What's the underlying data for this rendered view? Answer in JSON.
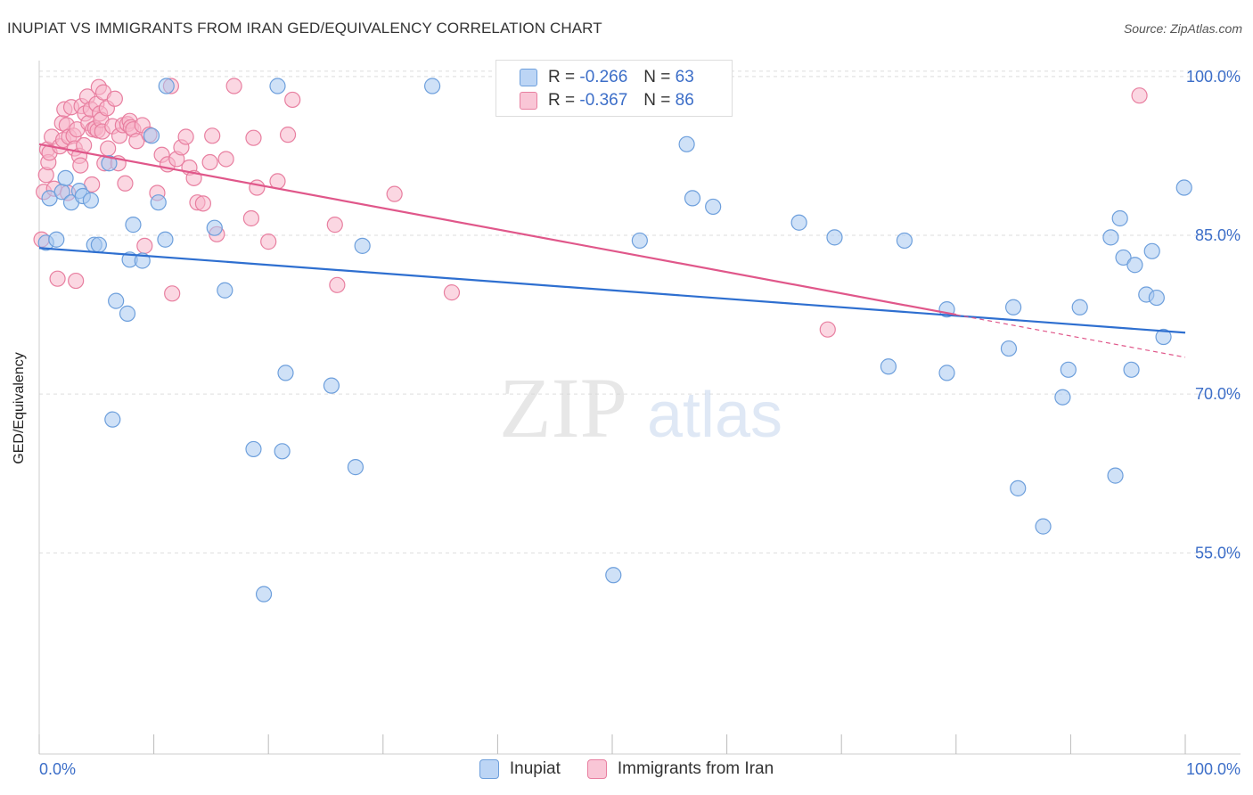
{
  "header": {
    "title": "INUPIAT VS IMMIGRANTS FROM IRAN GED/EQUIVALENCY CORRELATION CHART",
    "source": "Source: ZipAtlas.com"
  },
  "watermark": {
    "zip": "ZIP",
    "atlas": "atlas"
  },
  "colors": {
    "blue_fill": "#a8c8f0",
    "blue_stroke": "#6d9fdc",
    "blue_line": "#2e6fd0",
    "pink_fill": "#f7b6cb",
    "pink_stroke": "#e87fa0",
    "pink_line": "#e0578a",
    "tick_label": "#3c6ec8",
    "grid": "#dddddd"
  },
  "legend": {
    "rows": [
      {
        "r_label": "R =",
        "r_value": "-0.266",
        "n_label": "N =",
        "n_value": "63"
      },
      {
        "r_label": "R =",
        "r_value": "-0.367",
        "n_label": "N =",
        "n_value": "86"
      }
    ]
  },
  "chart_data": {
    "type": "scatter",
    "title": "INUPIAT VS IMMIGRANTS FROM IRAN GED/EQUIVALENCY CORRELATION CHART",
    "ylabel": "GED/Equivalency",
    "xlabel": "",
    "xlim": [
      0,
      100
    ],
    "ylim": [
      36.0,
      101.5
    ],
    "x_tick_labels": [
      "0.0%",
      "100.0%"
    ],
    "y_ticks": [
      55,
      70,
      85,
      100
    ],
    "y_tick_labels": [
      "55.0%",
      "70.0%",
      "85.0%",
      "100.0%"
    ],
    "grid": true,
    "legend_position": "top-center",
    "series": [
      {
        "name": "Inupiat",
        "color": "#a8c8f0",
        "points": [
          [
            0.6,
            84.3
          ],
          [
            0.9,
            88.5
          ],
          [
            1.5,
            84.6
          ],
          [
            2.0,
            89.1
          ],
          [
            2.3,
            90.4
          ],
          [
            2.8,
            88.1
          ],
          [
            3.5,
            89.2
          ],
          [
            3.8,
            88.7
          ],
          [
            4.5,
            88.3
          ],
          [
            4.8,
            84.1
          ],
          [
            5.2,
            84.1
          ],
          [
            6.1,
            91.8
          ],
          [
            6.4,
            67.6
          ],
          [
            6.7,
            78.8
          ],
          [
            7.7,
            77.6
          ],
          [
            7.9,
            82.7
          ],
          [
            8.2,
            86.0
          ],
          [
            9.0,
            82.6
          ],
          [
            9.8,
            94.4
          ],
          [
            10.4,
            88.1
          ],
          [
            11.0,
            84.6
          ],
          [
            11.1,
            99.1
          ],
          [
            15.3,
            85.7
          ],
          [
            16.2,
            79.8
          ],
          [
            18.7,
            64.8
          ],
          [
            19.6,
            51.1
          ],
          [
            20.8,
            99.1
          ],
          [
            21.2,
            64.6
          ],
          [
            21.5,
            72.0
          ],
          [
            25.5,
            70.8
          ],
          [
            27.6,
            63.1
          ],
          [
            28.2,
            84.0
          ],
          [
            34.3,
            99.1
          ],
          [
            47.0,
            99.1
          ],
          [
            50.1,
            52.9
          ],
          [
            52.4,
            84.5
          ],
          [
            56.5,
            93.6
          ],
          [
            57.0,
            88.5
          ],
          [
            58.8,
            87.7
          ],
          [
            66.3,
            86.2
          ],
          [
            69.4,
            84.8
          ],
          [
            74.1,
            72.6
          ],
          [
            75.5,
            84.5
          ],
          [
            79.2,
            72.0
          ],
          [
            79.2,
            78.0
          ],
          [
            84.6,
            74.3
          ],
          [
            85.0,
            78.2
          ],
          [
            85.4,
            61.1
          ],
          [
            87.6,
            57.5
          ],
          [
            89.3,
            69.7
          ],
          [
            89.8,
            72.3
          ],
          [
            90.8,
            78.2
          ],
          [
            93.5,
            84.8
          ],
          [
            93.9,
            62.3
          ],
          [
            94.3,
            86.6
          ],
          [
            94.6,
            82.9
          ],
          [
            95.3,
            72.3
          ],
          [
            95.6,
            82.2
          ],
          [
            96.6,
            79.4
          ],
          [
            97.1,
            83.5
          ],
          [
            97.5,
            79.1
          ],
          [
            98.1,
            75.4
          ],
          [
            99.9,
            89.5
          ]
        ]
      },
      {
        "name": "Immigrants from Iran",
        "color": "#f7b6cb",
        "points": [
          [
            0.2,
            84.6
          ],
          [
            0.4,
            89.1
          ],
          [
            0.6,
            90.7
          ],
          [
            0.7,
            93.1
          ],
          [
            0.8,
            91.9
          ],
          [
            0.9,
            92.8
          ],
          [
            1.1,
            94.3
          ],
          [
            1.3,
            89.4
          ],
          [
            1.6,
            80.9
          ],
          [
            1.8,
            93.4
          ],
          [
            2.0,
            95.6
          ],
          [
            2.1,
            94.0
          ],
          [
            2.2,
            96.9
          ],
          [
            2.4,
            95.4
          ],
          [
            2.5,
            89.0
          ],
          [
            2.6,
            94.3
          ],
          [
            2.8,
            97.1
          ],
          [
            3.0,
            94.4
          ],
          [
            3.1,
            93.2
          ],
          [
            3.2,
            80.7
          ],
          [
            3.3,
            95.0
          ],
          [
            3.5,
            92.5
          ],
          [
            3.6,
            91.6
          ],
          [
            3.7,
            97.2
          ],
          [
            3.9,
            93.5
          ],
          [
            4.0,
            96.5
          ],
          [
            4.2,
            98.1
          ],
          [
            4.3,
            95.6
          ],
          [
            4.5,
            96.9
          ],
          [
            4.6,
            89.8
          ],
          [
            4.7,
            95.0
          ],
          [
            4.9,
            95.1
          ],
          [
            5.0,
            97.4
          ],
          [
            5.1,
            94.9
          ],
          [
            5.2,
            99.0
          ],
          [
            5.3,
            96.5
          ],
          [
            5.4,
            95.9
          ],
          [
            5.5,
            94.8
          ],
          [
            5.6,
            98.5
          ],
          [
            5.7,
            91.8
          ],
          [
            5.9,
            97.0
          ],
          [
            6.0,
            93.2
          ],
          [
            6.4,
            95.3
          ],
          [
            6.6,
            97.9
          ],
          [
            6.9,
            91.8
          ],
          [
            7.0,
            94.4
          ],
          [
            7.3,
            95.4
          ],
          [
            7.5,
            89.9
          ],
          [
            7.7,
            95.5
          ],
          [
            7.9,
            95.8
          ],
          [
            8.0,
            95.2
          ],
          [
            8.2,
            95.0
          ],
          [
            8.5,
            93.9
          ],
          [
            9.0,
            95.4
          ],
          [
            9.2,
            84.0
          ],
          [
            9.6,
            94.5
          ],
          [
            10.3,
            89.0
          ],
          [
            10.7,
            92.6
          ],
          [
            11.2,
            91.7
          ],
          [
            11.5,
            99.1
          ],
          [
            11.6,
            79.5
          ],
          [
            12.0,
            92.2
          ],
          [
            12.4,
            93.3
          ],
          [
            12.8,
            94.3
          ],
          [
            13.1,
            91.4
          ],
          [
            13.5,
            90.4
          ],
          [
            13.8,
            88.1
          ],
          [
            14.3,
            88.0
          ],
          [
            14.9,
            91.9
          ],
          [
            15.1,
            94.4
          ],
          [
            15.5,
            85.1
          ],
          [
            16.3,
            92.2
          ],
          [
            17.0,
            99.1
          ],
          [
            18.5,
            86.6
          ],
          [
            18.7,
            94.2
          ],
          [
            19.0,
            89.5
          ],
          [
            20.0,
            84.4
          ],
          [
            20.8,
            90.1
          ],
          [
            21.7,
            94.5
          ],
          [
            22.1,
            97.8
          ],
          [
            25.8,
            86.0
          ],
          [
            26.0,
            80.3
          ],
          [
            31.0,
            88.9
          ],
          [
            36.0,
            79.6
          ],
          [
            68.8,
            76.1
          ],
          [
            96.0,
            98.2
          ]
        ]
      }
    ],
    "trend_lines": [
      {
        "series": "Inupiat",
        "x": [
          0,
          100
        ],
        "y": [
          83.8,
          75.8
        ]
      },
      {
        "series": "Immigrants from Iran",
        "x": [
          0,
          80
        ],
        "y": [
          93.6,
          77.5
        ]
      }
    ]
  },
  "bottom_legend": [
    {
      "label": "Inupiat"
    },
    {
      "label": "Immigrants from Iran"
    }
  ]
}
